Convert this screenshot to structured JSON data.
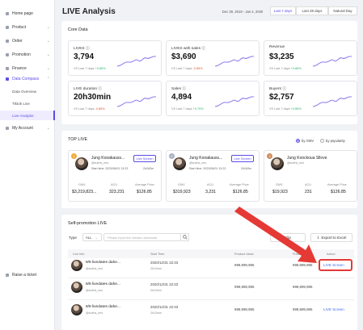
{
  "sidebar": {
    "items": [
      {
        "label": "Home page",
        "icon": "home-icon"
      },
      {
        "label": "Product",
        "icon": "product-icon"
      },
      {
        "label": "Order",
        "icon": "order-icon"
      },
      {
        "label": "Promotion",
        "icon": "promotion-icon"
      },
      {
        "label": "Finance",
        "icon": "finance-icon"
      },
      {
        "label": "Data Compass",
        "icon": "data-compass-icon"
      },
      {
        "label": "My Account",
        "icon": "account-icon"
      }
    ],
    "sub_items": [
      "Data Overview",
      "Tiktok Live",
      "Live Analysis"
    ],
    "raise_ticket": "Raise a ticket"
  },
  "header": {
    "title": "LIVE Analysis",
    "date_range": "Dec 29, 2019 - Jan 4, 2020",
    "ranges": [
      "Last 7 days",
      "Last 28 days",
      "Natural Day"
    ],
    "active_range": "Last 7 days"
  },
  "core": {
    "title": "Core Data",
    "tiles": [
      {
        "label": "LIVES",
        "value": "3,794",
        "vs": "VS Last 7 days",
        "change": "+0.86%",
        "dir": "up"
      },
      {
        "label": "LIVES with sales",
        "value": "$3,690",
        "vs": "VS Last 7 days",
        "change": "-0.86%",
        "dir": "down"
      },
      {
        "label": "Revenue",
        "value": "$3,235",
        "vs": "VS Last 7 days",
        "change": "+0.86%",
        "dir": "up"
      },
      {
        "label": "LIVE duration",
        "value": "20h30min",
        "vs": "VS Last 7 days",
        "change": "-0.86%",
        "dir": "down"
      },
      {
        "label": "Sales",
        "value": "4,894",
        "vs": "VS Last 7 days",
        "change": "+0.79%",
        "dir": "up"
      },
      {
        "label": "Buyers",
        "value": "$2,757",
        "vs": "VS Last 7 days",
        "change": "+0.86%",
        "dir": "up"
      }
    ]
  },
  "top_live": {
    "title": "TOP LIVE",
    "radio_options": [
      "by GMV",
      "by popularity"
    ],
    "radio_selected": "by GMV",
    "cards": [
      {
        "rank": "1",
        "name": "Jung Kooakauss...",
        "handle": "@suehs_neo",
        "start": "Start time: 2023/06/01 13:23",
        "duration": "2h2d3m",
        "btn": "Live Screen",
        "metrics": [
          {
            "label": "GMV",
            "value": "$3,219,823..."
          },
          {
            "label": "ACU",
            "value": "323,231"
          },
          {
            "label": "Average Price",
            "value": "$126.85"
          }
        ]
      },
      {
        "rank": "2",
        "name": "Jung Kooakauss...",
        "handle": "@suehs_neo",
        "start": "Start time: 2023/06/01 13:23",
        "duration": "2h2d3m",
        "btn": "Live Screen",
        "metrics": [
          {
            "label": "GMV",
            "value": "$319,923"
          },
          {
            "label": "ACU",
            "value": "3,231"
          },
          {
            "label": "Average Price",
            "value": "$126.85"
          }
        ]
      },
      {
        "rank": "3",
        "name": "Jung Koockoua Sllove",
        "handle": "@suehs_neo",
        "start": "",
        "duration": "",
        "btn": "",
        "metrics": [
          {
            "label": "GMV",
            "value": "$19,923"
          },
          {
            "label": "ACU",
            "value": "231"
          },
          {
            "label": "Average Price",
            "value": "$126.85"
          }
        ]
      }
    ]
  },
  "self_promo": {
    "title": "Self-promotion LIVE",
    "type_label": "Type",
    "type_value": "ALL",
    "search_placeholder": "Please input the creator username",
    "clip_button": "Clip",
    "export_button": "Export to Excel",
    "columns": [
      "Live Info",
      "Start Time",
      "Product views",
      "Product",
      "Action"
    ],
    "rows": [
      {
        "title": "8/8 livedates dahe...",
        "handle": "@suehs_neo",
        "time": "2020/12/31 22:33",
        "dur": "2h12min",
        "views": "999,999,995",
        "product": "999,999,995",
        "action": "LIVE Screen"
      },
      {
        "title": "8/8 livedates dahe...",
        "handle": "@suehs_neo",
        "time": "2020/12/31 22:33",
        "dur": "2h12min",
        "views": "999,999,995",
        "product": "999,999,995",
        "action": ""
      },
      {
        "title": "8/8 livedates dahe...",
        "handle": "@suehs_neo",
        "time": "2020/12/31 22:33",
        "dur": "2h12min",
        "views": "999,999,995",
        "product": "999,999,995",
        "action": "LIVE Screen"
      }
    ]
  },
  "colors": {
    "accent": "#5b4ce6",
    "arrow": "#e53935",
    "link": "#3b6ef2"
  }
}
